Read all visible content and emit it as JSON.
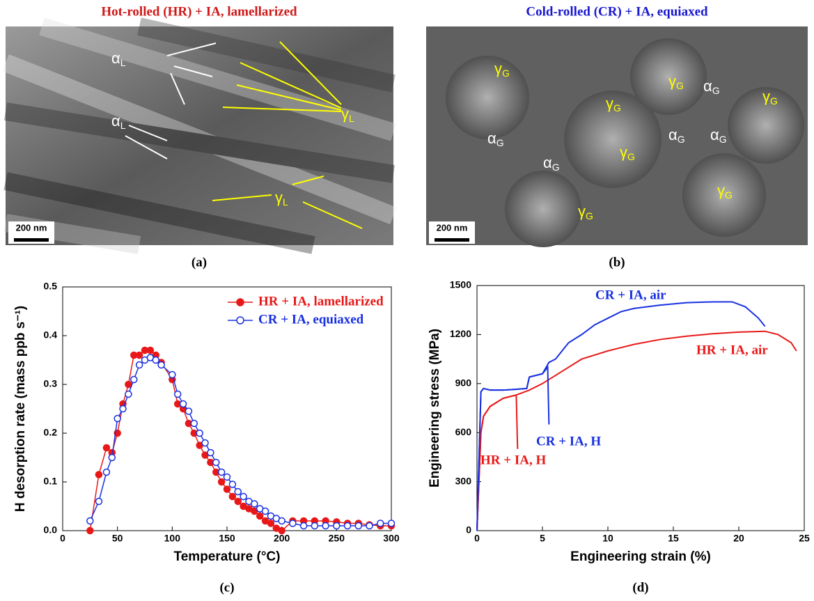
{
  "panels": [
    {
      "title": "Hot-rolled (HR) + IA, lamellarized",
      "title_color": "#d01818",
      "label": "(a)",
      "scale_bar": "200 nm",
      "annotations": [
        {
          "symbol": "α",
          "sub": "L",
          "color": "#ffffff"
        },
        {
          "symbol": "α",
          "sub": "L",
          "color": "#ffffff"
        },
        {
          "symbol": "γ",
          "sub": "L",
          "color": "#ffff00"
        },
        {
          "symbol": "γ",
          "sub": "L",
          "color": "#ffff00"
        }
      ]
    },
    {
      "title": "Cold-rolled  (CR) + IA, equiaxed",
      "title_color": "#1818d0",
      "label": "(b)",
      "scale_bar": "200 nm",
      "annotations": [
        {
          "symbol": "γ",
          "sub": "G",
          "color": "#ffff00"
        },
        {
          "symbol": "γ",
          "sub": "G",
          "color": "#ffff00"
        },
        {
          "symbol": "γ",
          "sub": "G",
          "color": "#ffff00"
        },
        {
          "symbol": "α",
          "sub": "G",
          "color": "#ffffff"
        },
        {
          "symbol": "γ",
          "sub": "G",
          "color": "#ffff00"
        },
        {
          "symbol": "α",
          "sub": "G",
          "color": "#ffffff"
        },
        {
          "symbol": "α",
          "sub": "G",
          "color": "#ffffff"
        },
        {
          "symbol": "γ",
          "sub": "G",
          "color": "#ffff00"
        },
        {
          "symbol": "α",
          "sub": "G",
          "color": "#ffffff"
        },
        {
          "symbol": "α",
          "sub": "G",
          "color": "#ffffff"
        },
        {
          "symbol": "γ",
          "sub": "G",
          "color": "#ffff00"
        },
        {
          "symbol": "γ",
          "sub": "G",
          "color": "#ffff00"
        }
      ]
    }
  ],
  "chart_data": [
    {
      "type": "line",
      "label": "(c)",
      "x_label": "Temperature (°C)",
      "y_label": "H desorption rate (mass ppb s⁻¹)",
      "xlim": [
        0,
        300
      ],
      "xticks": [
        0,
        50,
        100,
        150,
        200,
        250,
        300
      ],
      "ylim": [
        0,
        0.5
      ],
      "yticks": [
        {
          "value": 0,
          "label": "0.0"
        },
        0.1,
        0.2,
        0.3,
        0.4,
        0.5
      ],
      "legend": "upper right",
      "series": [
        {
          "name": "HR + IA, lamellarized",
          "color": "#e81818",
          "marker": "filled",
          "x": [
            25,
            33,
            40,
            45,
            50,
            55,
            60,
            65,
            70,
            75,
            80,
            85,
            90,
            100,
            105,
            110,
            115,
            120,
            125,
            130,
            135,
            140,
            145,
            150,
            155,
            160,
            165,
            170,
            175,
            180,
            185,
            190,
            195,
            200,
            210,
            220,
            230,
            240,
            250,
            260,
            270,
            280,
            290,
            300
          ],
          "values": [
            0,
            0.115,
            0.17,
            0.16,
            0.2,
            0.26,
            0.3,
            0.36,
            0.36,
            0.37,
            0.37,
            0.36,
            0.345,
            0.31,
            0.26,
            0.25,
            0.22,
            0.2,
            0.175,
            0.155,
            0.14,
            0.12,
            0.1,
            0.085,
            0.07,
            0.06,
            0.05,
            0.045,
            0.04,
            0.03,
            0.02,
            0.015,
            0.005,
            0,
            0.02,
            0.02,
            0.02,
            0.02,
            0.018,
            0.015,
            0.015,
            0.012,
            0.01,
            0.01
          ]
        },
        {
          "name": "CR + IA, equiaxed",
          "color": "#1830e0",
          "marker": "open",
          "x": [
            25,
            33,
            40,
            45,
            50,
            55,
            60,
            65,
            70,
            75,
            80,
            85,
            90,
            100,
            105,
            110,
            115,
            120,
            125,
            130,
            135,
            140,
            145,
            150,
            155,
            160,
            165,
            170,
            175,
            180,
            185,
            190,
            195,
            200,
            210,
            220,
            230,
            240,
            250,
            260,
            270,
            280,
            290,
            300
          ],
          "values": [
            0.02,
            0.06,
            0.12,
            0.15,
            0.23,
            0.25,
            0.28,
            0.31,
            0.34,
            0.35,
            0.355,
            0.35,
            0.34,
            0.32,
            0.28,
            0.26,
            0.245,
            0.22,
            0.2,
            0.18,
            0.16,
            0.14,
            0.12,
            0.11,
            0.095,
            0.08,
            0.07,
            0.06,
            0.055,
            0.045,
            0.04,
            0.03,
            0.025,
            0.02,
            0.015,
            0.01,
            0.01,
            0.01,
            0.01,
            0.01,
            0.01,
            0.01,
            0.015,
            0.015
          ]
        }
      ]
    },
    {
      "type": "line",
      "label": "(d)",
      "x_label": "Engineering strain (%)",
      "y_label": "Engineering stress (MPa)",
      "xlim": [
        0,
        25
      ],
      "xticks": [
        0,
        5,
        10,
        15,
        20,
        25
      ],
      "ylim": [
        0,
        1500
      ],
      "yticks": [
        0,
        300,
        600,
        900,
        1200,
        1500
      ],
      "series": [
        {
          "name": "CR + IA, air",
          "color": "#1830e0",
          "x": [
            0,
            0.3,
            0.5,
            1,
            2,
            3,
            3.8,
            4,
            5,
            5.5,
            6,
            7,
            8,
            9,
            10,
            11,
            12,
            14,
            16,
            18,
            19.5,
            20.5,
            21.5,
            22
          ],
          "values": [
            0,
            850,
            870,
            860,
            860,
            865,
            870,
            940,
            960,
            1030,
            1050,
            1150,
            1200,
            1260,
            1300,
            1340,
            1360,
            1380,
            1395,
            1400,
            1400,
            1370,
            1300,
            1250
          ]
        },
        {
          "name": "HR + IA, air",
          "color": "#e81818",
          "x": [
            0,
            0.3,
            0.5,
            1,
            2,
            3,
            4,
            5,
            6,
            7,
            8,
            10,
            12,
            14,
            16,
            18,
            20,
            22,
            23,
            24,
            24.4
          ],
          "values": [
            0,
            600,
            700,
            760,
            810,
            830,
            860,
            900,
            950,
            1000,
            1050,
            1100,
            1140,
            1170,
            1190,
            1205,
            1215,
            1220,
            1200,
            1150,
            1100
          ]
        },
        {
          "name": "HR + IA, H",
          "color": "#e81818",
          "x": [
            0,
            0.3,
            0.5,
            1,
            2,
            3,
            3.1
          ],
          "values": [
            0,
            600,
            700,
            760,
            810,
            830,
            500
          ]
        },
        {
          "name": "CR + IA, H",
          "color": "#1830e0",
          "x": [
            0,
            0.3,
            0.5,
            1,
            2,
            3,
            3.8,
            4,
            5,
            5.4,
            5.5
          ],
          "values": [
            0,
            850,
            870,
            860,
            860,
            865,
            870,
            940,
            960,
            1000,
            650
          ]
        }
      ]
    }
  ]
}
